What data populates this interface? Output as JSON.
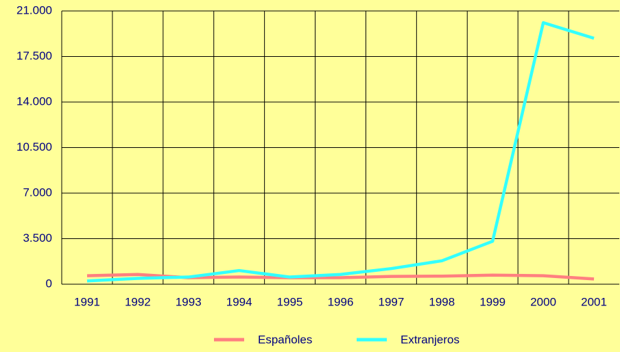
{
  "chart_data": {
    "type": "line",
    "categories": [
      "1991",
      "1992",
      "1993",
      "1994",
      "1995",
      "1996",
      "1997",
      "1998",
      "1999",
      "2000",
      "2001"
    ],
    "series": [
      {
        "name": "Españoles",
        "color": "#ff8080",
        "values": [
          650,
          750,
          500,
          550,
          500,
          500,
          600,
          620,
          700,
          650,
          400
        ]
      },
      {
        "name": "Extranjeros",
        "color": "#33ffff",
        "values": [
          250,
          450,
          550,
          1050,
          550,
          750,
          1200,
          1800,
          3300,
          20100,
          18900
        ]
      }
    ],
    "ylim": [
      0,
      21000
    ],
    "yticks": [
      0,
      {
        "value": 3500,
        "label": "3.500"
      },
      {
        "value": 7000,
        "label": "7.000"
      },
      {
        "value": 10500,
        "label": "10.500"
      },
      {
        "value": 14000,
        "label": "14.000"
      },
      {
        "value": 17500,
        "label": "17.500"
      },
      {
        "value": 21000,
        "label": "21.000"
      }
    ],
    "grid": true,
    "legend": "bottom"
  }
}
